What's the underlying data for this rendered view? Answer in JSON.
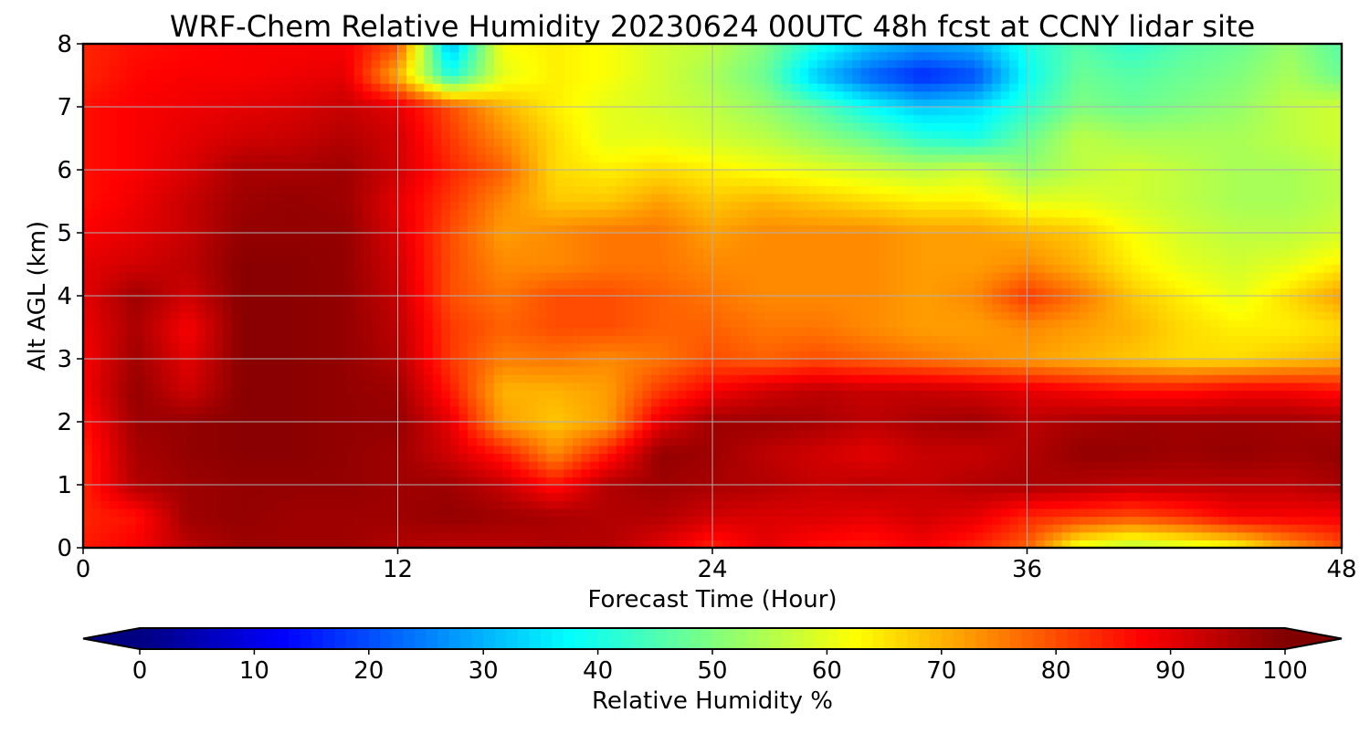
{
  "chart_data": {
    "type": "heatmap",
    "title": "WRF-Chem Relative Humidity 20230624 00UTC 48h fcst at CCNY lidar site",
    "xlabel": "Forecast Time (Hour)",
    "ylabel": "Alt AGL (km)",
    "xlim": [
      0,
      48
    ],
    "ylim": [
      0,
      8
    ],
    "xticks": [
      0,
      12,
      24,
      36,
      48
    ],
    "yticks": [
      0,
      1,
      2,
      3,
      4,
      5,
      6,
      7,
      8
    ],
    "grid": true,
    "colormap": "jet",
    "colorbar": {
      "label": "Relative Humidity %",
      "ticks": [
        0,
        10,
        20,
        30,
        40,
        50,
        60,
        70,
        80,
        90,
        100
      ],
      "range": [
        0,
        100
      ],
      "extend": "both",
      "orientation": "horizontal",
      "placement": "bottom"
    },
    "x": [
      0,
      2,
      4,
      6,
      8,
      10,
      12,
      14,
      16,
      18,
      20,
      22,
      24,
      26,
      28,
      30,
      32,
      34,
      36,
      38,
      40,
      42,
      44,
      46,
      48
    ],
    "y": [
      0,
      0.5,
      1,
      1.5,
      2,
      2.5,
      3,
      3.5,
      4,
      4.5,
      5,
      5.5,
      6,
      6.5,
      7,
      7.5,
      8
    ],
    "z_units": "Relative Humidity %",
    "z": [
      [
        85,
        88,
        94,
        97,
        97,
        97,
        95,
        94,
        94,
        95,
        95,
        90,
        84,
        90,
        86,
        85,
        88,
        84,
        78,
        60,
        55,
        58,
        62,
        72,
        80
      ],
      [
        84,
        86,
        97,
        98,
        97,
        97,
        97,
        98,
        97,
        96,
        95,
        95,
        92,
        91,
        91,
        90,
        92,
        90,
        84,
        82,
        80,
        83,
        88,
        88,
        88
      ],
      [
        84,
        95,
        97,
        98,
        98,
        98,
        97,
        97,
        93,
        86,
        95,
        97,
        96,
        95,
        93,
        94,
        93,
        95,
        96,
        95,
        94,
        94,
        94,
        94,
        96
      ],
      [
        84,
        96,
        98,
        99,
        99,
        98,
        97,
        92,
        85,
        74,
        85,
        98,
        97,
        94,
        92,
        90,
        93,
        93,
        95,
        98,
        98,
        97,
        98,
        97,
        98
      ],
      [
        86,
        97,
        98,
        99,
        99,
        98,
        98,
        90,
        72,
        68,
        72,
        90,
        97,
        97,
        96,
        94,
        96,
        97,
        94,
        96,
        97,
        97,
        97,
        97,
        96
      ],
      [
        88,
        98,
        92,
        99,
        99,
        98,
        97,
        85,
        70,
        70,
        72,
        82,
        88,
        92,
        94,
        93,
        93,
        92,
        90,
        88,
        86,
        86,
        88,
        88,
        86
      ],
      [
        88,
        97,
        90,
        99,
        99,
        98,
        95,
        82,
        75,
        76,
        74,
        76,
        80,
        78,
        80,
        78,
        76,
        74,
        72,
        70,
        68,
        66,
        66,
        68,
        70
      ],
      [
        89,
        96,
        88,
        99,
        99,
        98,
        94,
        82,
        78,
        80,
        80,
        78,
        78,
        76,
        76,
        74,
        72,
        72,
        74,
        72,
        70,
        66,
        64,
        64,
        66
      ],
      [
        90,
        97,
        92,
        99,
        99,
        98,
        93,
        80,
        76,
        80,
        80,
        78,
        76,
        74,
        74,
        74,
        72,
        74,
        82,
        76,
        68,
        64,
        60,
        66,
        72
      ],
      [
        90,
        92,
        94,
        99,
        99,
        98,
        92,
        80,
        74,
        74,
        76,
        76,
        74,
        74,
        74,
        74,
        72,
        72,
        74,
        70,
        64,
        60,
        58,
        60,
        64
      ],
      [
        88,
        90,
        93,
        98,
        98,
        98,
        91,
        80,
        72,
        74,
        76,
        76,
        72,
        74,
        74,
        74,
        72,
        72,
        70,
        68,
        62,
        58,
        56,
        56,
        58
      ],
      [
        86,
        89,
        93,
        97,
        98,
        97,
        90,
        82,
        74,
        68,
        68,
        72,
        68,
        70,
        68,
        66,
        64,
        64,
        60,
        60,
        58,
        56,
        54,
        54,
        56
      ],
      [
        86,
        88,
        91,
        96,
        96,
        97,
        92,
        84,
        78,
        66,
        64,
        66,
        64,
        62,
        60,
        58,
        56,
        58,
        52,
        56,
        58,
        56,
        54,
        54,
        56
      ],
      [
        86,
        88,
        90,
        92,
        93,
        95,
        92,
        82,
        74,
        66,
        60,
        60,
        58,
        56,
        52,
        48,
        42,
        40,
        48,
        56,
        54,
        54,
        54,
        56,
        58
      ],
      [
        86,
        88,
        89,
        90,
        91,
        93,
        90,
        80,
        70,
        64,
        60,
        58,
        56,
        52,
        46,
        38,
        32,
        34,
        42,
        50,
        48,
        50,
        52,
        56,
        58
      ],
      [
        84,
        87,
        88,
        88,
        89,
        90,
        70,
        40,
        60,
        64,
        62,
        58,
        54,
        48,
        32,
        22,
        16,
        20,
        38,
        48,
        46,
        48,
        50,
        54,
        48
      ],
      [
        84,
        86,
        87,
        88,
        88,
        88,
        80,
        30,
        62,
        64,
        62,
        58,
        56,
        50,
        40,
        32,
        28,
        30,
        40,
        46,
        42,
        46,
        48,
        52,
        46
      ]
    ]
  }
}
